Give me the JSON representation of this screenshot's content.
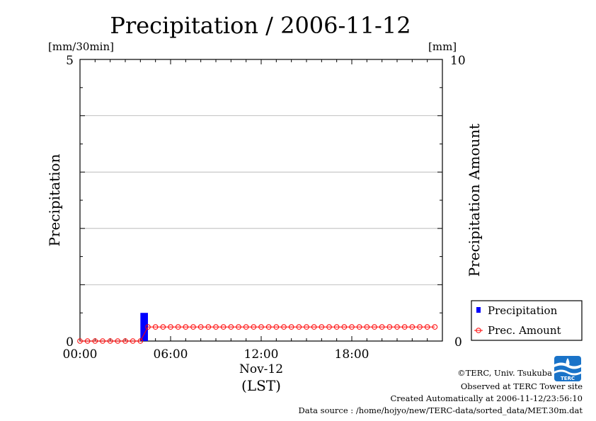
{
  "chart_data": {
    "type": "bar",
    "title": "Precipitation / 2006-11-12",
    "left_axis": {
      "label": "Precipitation",
      "unit": "[mm/30min]",
      "range": [
        0,
        5
      ],
      "tick_labels": [
        "0",
        "5"
      ]
    },
    "right_axis": {
      "label": "Precipitation Amount",
      "unit": "[mm]",
      "range": [
        0,
        10
      ],
      "tick_labels": [
        "0",
        "10"
      ]
    },
    "x_axis": {
      "range_hours": [
        0,
        24
      ],
      "tick_labels": [
        "00:00",
        "06:00",
        "12:00",
        "18:00"
      ],
      "tick_hours": [
        0,
        6,
        12,
        18
      ],
      "date_label": "Nov-12",
      "tz_label": "(LST)"
    },
    "grid": true,
    "legend": {
      "placement": "lower-right",
      "entries": [
        "Precipitation",
        "Prec. Amount"
      ]
    },
    "series": [
      {
        "name": "Precipitation",
        "kind": "bar",
        "color": "#0000ff",
        "axis": "left",
        "values": [
          0,
          0,
          0,
          0,
          0,
          0,
          0,
          0,
          0.5,
          0,
          0,
          0,
          0,
          0,
          0,
          0,
          0,
          0,
          0,
          0,
          0,
          0,
          0,
          0,
          0,
          0,
          0,
          0,
          0,
          0,
          0,
          0,
          0,
          0,
          0,
          0,
          0,
          0,
          0,
          0,
          0,
          0,
          0,
          0,
          0,
          0,
          0,
          0
        ]
      },
      {
        "name": "Prec. Amount",
        "kind": "line",
        "color": "#ff0000",
        "axis": "right",
        "values": [
          0,
          0,
          0,
          0,
          0,
          0,
          0,
          0,
          0,
          0.5,
          0.5,
          0.5,
          0.5,
          0.5,
          0.5,
          0.5,
          0.5,
          0.5,
          0.5,
          0.5,
          0.5,
          0.5,
          0.5,
          0.5,
          0.5,
          0.5,
          0.5,
          0.5,
          0.5,
          0.5,
          0.5,
          0.5,
          0.5,
          0.5,
          0.5,
          0.5,
          0.5,
          0.5,
          0.5,
          0.5,
          0.5,
          0.5,
          0.5,
          0.5,
          0.5,
          0.5,
          0.5,
          0.5
        ]
      }
    ]
  },
  "footer": {
    "copyright": "©TERC, Univ. Tsukuba",
    "observed": "Observed at TERC Tower site",
    "created": "Created Automatically at 2006-11-12/23:56:10",
    "source": "Data source : /home/hojyo/new/TERC-data/sorted_data/MET.30m.dat"
  },
  "logo": {
    "text": "TERC",
    "color": "#1a73c8"
  }
}
